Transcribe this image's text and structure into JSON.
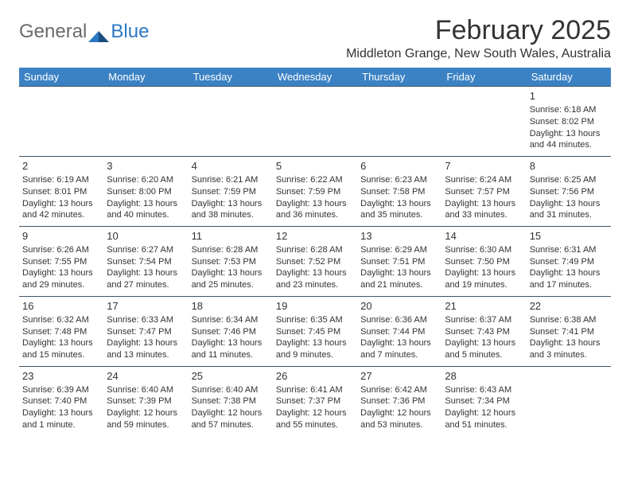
{
  "logo": {
    "text1": "General",
    "text2": "Blue"
  },
  "title": "February 2025",
  "location": "Middleton Grange, New South Wales, Australia",
  "colors": {
    "header_bg": "#3b82c4",
    "header_text": "#ffffff",
    "body_text": "#333333",
    "grid_line": "#445566",
    "logo_gray": "#6a6a6a",
    "logo_blue": "#2b78c3",
    "background": "#ffffff"
  },
  "day_headers": [
    "Sunday",
    "Monday",
    "Tuesday",
    "Wednesday",
    "Thursday",
    "Friday",
    "Saturday"
  ],
  "weeks": [
    [
      null,
      null,
      null,
      null,
      null,
      null,
      {
        "n": "1",
        "sr": "Sunrise: 6:18 AM",
        "ss": "Sunset: 8:02 PM",
        "dl1": "Daylight: 13 hours",
        "dl2": "and 44 minutes."
      }
    ],
    [
      {
        "n": "2",
        "sr": "Sunrise: 6:19 AM",
        "ss": "Sunset: 8:01 PM",
        "dl1": "Daylight: 13 hours",
        "dl2": "and 42 minutes."
      },
      {
        "n": "3",
        "sr": "Sunrise: 6:20 AM",
        "ss": "Sunset: 8:00 PM",
        "dl1": "Daylight: 13 hours",
        "dl2": "and 40 minutes."
      },
      {
        "n": "4",
        "sr": "Sunrise: 6:21 AM",
        "ss": "Sunset: 7:59 PM",
        "dl1": "Daylight: 13 hours",
        "dl2": "and 38 minutes."
      },
      {
        "n": "5",
        "sr": "Sunrise: 6:22 AM",
        "ss": "Sunset: 7:59 PM",
        "dl1": "Daylight: 13 hours",
        "dl2": "and 36 minutes."
      },
      {
        "n": "6",
        "sr": "Sunrise: 6:23 AM",
        "ss": "Sunset: 7:58 PM",
        "dl1": "Daylight: 13 hours",
        "dl2": "and 35 minutes."
      },
      {
        "n": "7",
        "sr": "Sunrise: 6:24 AM",
        "ss": "Sunset: 7:57 PM",
        "dl1": "Daylight: 13 hours",
        "dl2": "and 33 minutes."
      },
      {
        "n": "8",
        "sr": "Sunrise: 6:25 AM",
        "ss": "Sunset: 7:56 PM",
        "dl1": "Daylight: 13 hours",
        "dl2": "and 31 minutes."
      }
    ],
    [
      {
        "n": "9",
        "sr": "Sunrise: 6:26 AM",
        "ss": "Sunset: 7:55 PM",
        "dl1": "Daylight: 13 hours",
        "dl2": "and 29 minutes."
      },
      {
        "n": "10",
        "sr": "Sunrise: 6:27 AM",
        "ss": "Sunset: 7:54 PM",
        "dl1": "Daylight: 13 hours",
        "dl2": "and 27 minutes."
      },
      {
        "n": "11",
        "sr": "Sunrise: 6:28 AM",
        "ss": "Sunset: 7:53 PM",
        "dl1": "Daylight: 13 hours",
        "dl2": "and 25 minutes."
      },
      {
        "n": "12",
        "sr": "Sunrise: 6:28 AM",
        "ss": "Sunset: 7:52 PM",
        "dl1": "Daylight: 13 hours",
        "dl2": "and 23 minutes."
      },
      {
        "n": "13",
        "sr": "Sunrise: 6:29 AM",
        "ss": "Sunset: 7:51 PM",
        "dl1": "Daylight: 13 hours",
        "dl2": "and 21 minutes."
      },
      {
        "n": "14",
        "sr": "Sunrise: 6:30 AM",
        "ss": "Sunset: 7:50 PM",
        "dl1": "Daylight: 13 hours",
        "dl2": "and 19 minutes."
      },
      {
        "n": "15",
        "sr": "Sunrise: 6:31 AM",
        "ss": "Sunset: 7:49 PM",
        "dl1": "Daylight: 13 hours",
        "dl2": "and 17 minutes."
      }
    ],
    [
      {
        "n": "16",
        "sr": "Sunrise: 6:32 AM",
        "ss": "Sunset: 7:48 PM",
        "dl1": "Daylight: 13 hours",
        "dl2": "and 15 minutes."
      },
      {
        "n": "17",
        "sr": "Sunrise: 6:33 AM",
        "ss": "Sunset: 7:47 PM",
        "dl1": "Daylight: 13 hours",
        "dl2": "and 13 minutes."
      },
      {
        "n": "18",
        "sr": "Sunrise: 6:34 AM",
        "ss": "Sunset: 7:46 PM",
        "dl1": "Daylight: 13 hours",
        "dl2": "and 11 minutes."
      },
      {
        "n": "19",
        "sr": "Sunrise: 6:35 AM",
        "ss": "Sunset: 7:45 PM",
        "dl1": "Daylight: 13 hours",
        "dl2": "and 9 minutes."
      },
      {
        "n": "20",
        "sr": "Sunrise: 6:36 AM",
        "ss": "Sunset: 7:44 PM",
        "dl1": "Daylight: 13 hours",
        "dl2": "and 7 minutes."
      },
      {
        "n": "21",
        "sr": "Sunrise: 6:37 AM",
        "ss": "Sunset: 7:43 PM",
        "dl1": "Daylight: 13 hours",
        "dl2": "and 5 minutes."
      },
      {
        "n": "22",
        "sr": "Sunrise: 6:38 AM",
        "ss": "Sunset: 7:41 PM",
        "dl1": "Daylight: 13 hours",
        "dl2": "and 3 minutes."
      }
    ],
    [
      {
        "n": "23",
        "sr": "Sunrise: 6:39 AM",
        "ss": "Sunset: 7:40 PM",
        "dl1": "Daylight: 13 hours",
        "dl2": "and 1 minute."
      },
      {
        "n": "24",
        "sr": "Sunrise: 6:40 AM",
        "ss": "Sunset: 7:39 PM",
        "dl1": "Daylight: 12 hours",
        "dl2": "and 59 minutes."
      },
      {
        "n": "25",
        "sr": "Sunrise: 6:40 AM",
        "ss": "Sunset: 7:38 PM",
        "dl1": "Daylight: 12 hours",
        "dl2": "and 57 minutes."
      },
      {
        "n": "26",
        "sr": "Sunrise: 6:41 AM",
        "ss": "Sunset: 7:37 PM",
        "dl1": "Daylight: 12 hours",
        "dl2": "and 55 minutes."
      },
      {
        "n": "27",
        "sr": "Sunrise: 6:42 AM",
        "ss": "Sunset: 7:36 PM",
        "dl1": "Daylight: 12 hours",
        "dl2": "and 53 minutes."
      },
      {
        "n": "28",
        "sr": "Sunrise: 6:43 AM",
        "ss": "Sunset: 7:34 PM",
        "dl1": "Daylight: 12 hours",
        "dl2": "and 51 minutes."
      },
      null
    ]
  ]
}
